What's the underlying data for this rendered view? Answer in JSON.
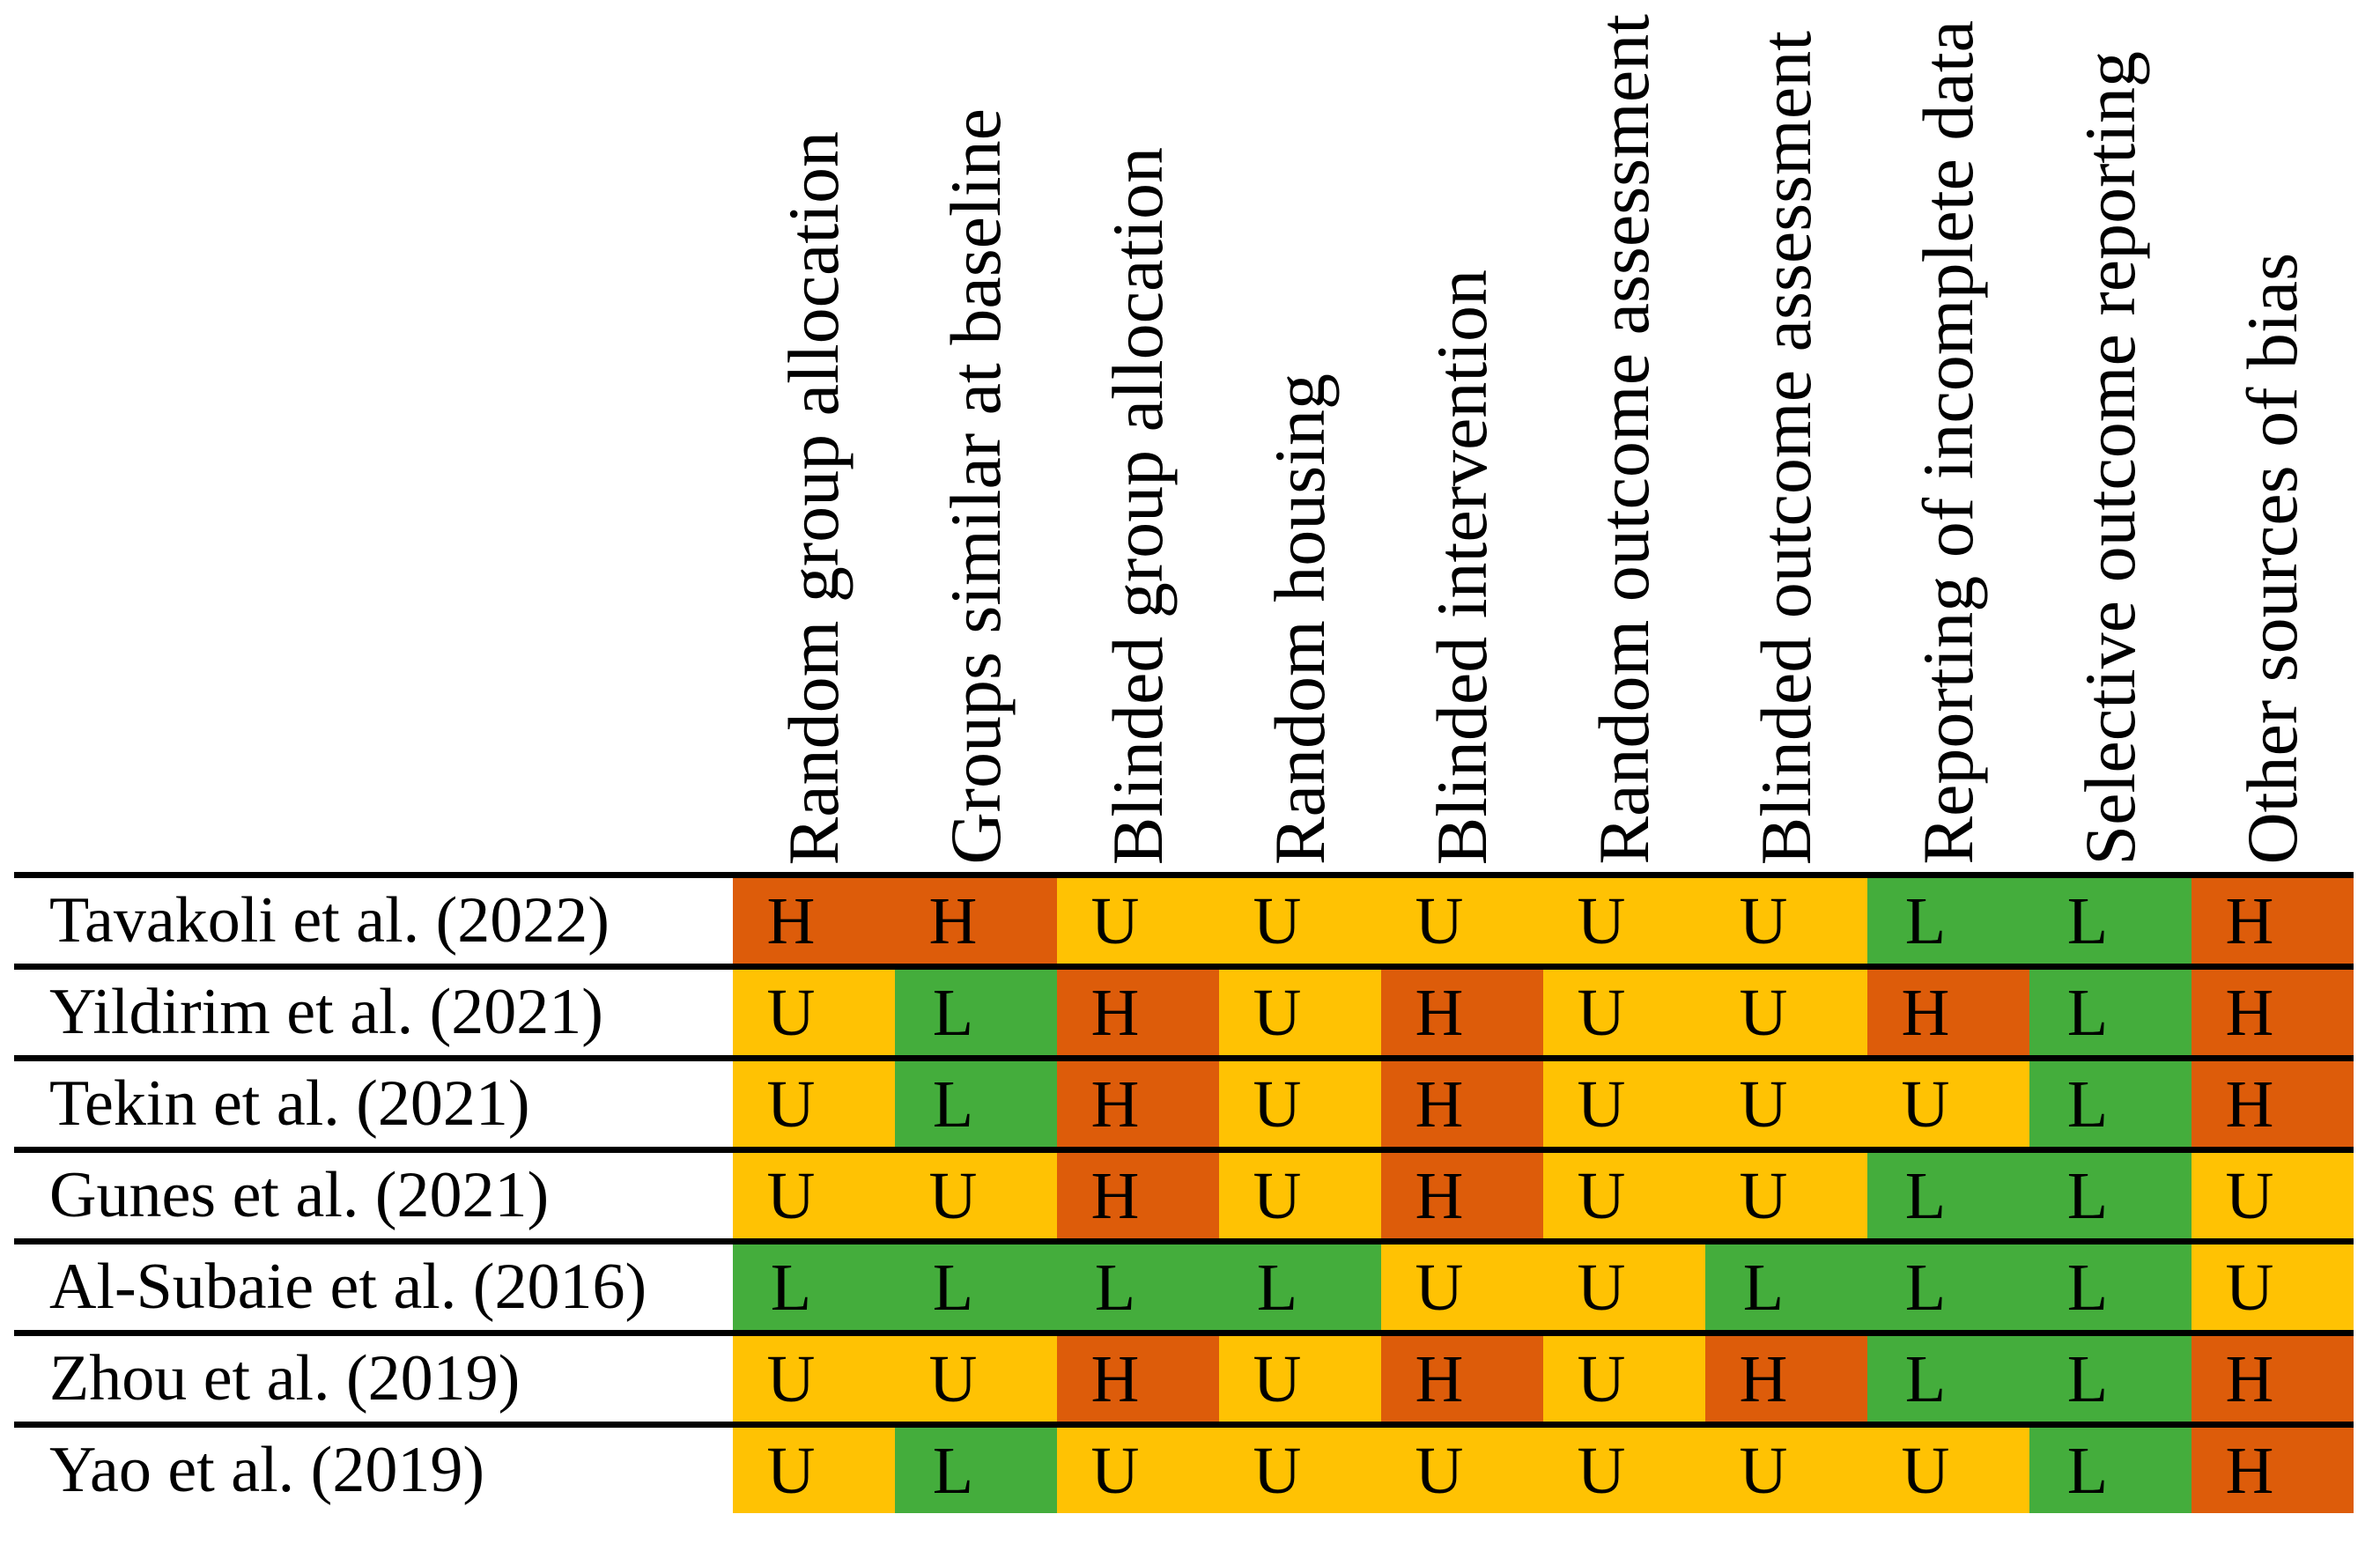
{
  "chart_data": {
    "type": "heatmap",
    "title": "",
    "columns": [
      "Random group allocation",
      "Groups similar at baseline",
      "Blinded group allocation",
      "Random housing",
      "Blinded intervention",
      "Random outcome assessment",
      "Blinded outcome assessment",
      "Reporting of incomplete data",
      "Selective outcome reporting",
      "Other sources of bias"
    ],
    "rows": [
      {
        "study": "Tavakoli et al. (2022)",
        "ratings": [
          "H",
          "H",
          "U",
          "U",
          "U",
          "U",
          "U",
          "L",
          "L",
          "H"
        ]
      },
      {
        "study": "Yildirim et al. (2021)",
        "ratings": [
          "U",
          "L",
          "H",
          "U",
          "H",
          "U",
          "U",
          "H",
          "L",
          "H"
        ]
      },
      {
        "study": "Tekin et al. (2021)",
        "ratings": [
          "U",
          "L",
          "H",
          "U",
          "H",
          "U",
          "U",
          "U",
          "L",
          "H"
        ]
      },
      {
        "study": "Gunes et al. (2021)",
        "ratings": [
          "U",
          "U",
          "H",
          "U",
          "H",
          "U",
          "U",
          "L",
          "L",
          "U"
        ]
      },
      {
        "study": "Al-Subaie et al. (2016)",
        "ratings": [
          "L",
          "L",
          "L",
          "L",
          "U",
          "U",
          "L",
          "L",
          "L",
          "U"
        ]
      },
      {
        "study": "Zhou et al. (2019)",
        "ratings": [
          "U",
          "U",
          "H",
          "U",
          "H",
          "U",
          "H",
          "L",
          "L",
          "H"
        ]
      },
      {
        "study": "Yao et al. (2019)",
        "ratings": [
          "U",
          "L",
          "U",
          "U",
          "U",
          "U",
          "U",
          "U",
          "L",
          "H"
        ]
      }
    ],
    "cell_colors": {
      "H": "#DD5C0A",
      "U": "#FFC203",
      "L": "#44AD3C"
    },
    "text_color": "#000000",
    "grid_line_color": "#000000",
    "layout_hints": {
      "grid": "horizontal rules only, no vertical rules",
      "column_header_rotation": "90deg bottom-to-top",
      "legend_position": "none"
    }
  }
}
